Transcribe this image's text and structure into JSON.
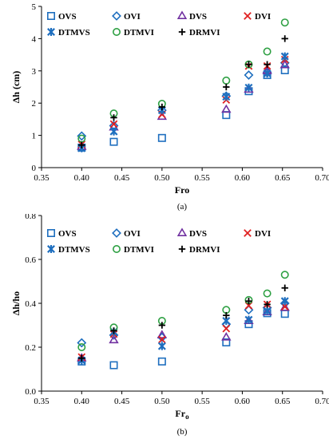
{
  "colors": {
    "OVS": "#1f6fbf",
    "OVI": "#1f6fbf",
    "DVS": "#7030a0",
    "DVI": "#e02020",
    "DTMVS": "#1f6fbf",
    "DTMVI": "#2ea043",
    "DRMVI": "#000000"
  },
  "chart_data": [
    {
      "type": "scatter",
      "caption": "(a)",
      "xlabel": "Fro",
      "ylabel": "Δh (cm)",
      "xlim": [
        0.35,
        0.7
      ],
      "ylim": [
        0,
        5
      ],
      "xticks": [
        "0.35",
        "0.40",
        "0.45",
        "0.50",
        "0.55",
        "0.60",
        "0.65",
        "0.70"
      ],
      "yticks": [
        "0",
        "1",
        "2",
        "3",
        "4",
        "5"
      ],
      "grid": false,
      "legend_position": "top",
      "series": [
        {
          "name": "OVS",
          "marker": "square",
          "x": [
            0.4,
            0.44,
            0.5,
            0.58,
            0.608,
            0.631,
            0.653
          ],
          "y": [
            0.62,
            0.8,
            0.92,
            1.63,
            2.37,
            2.87,
            3.02
          ]
        },
        {
          "name": "OVI",
          "marker": "diamond",
          "x": [
            0.4,
            0.44,
            0.5,
            0.58,
            0.608,
            0.631,
            0.653
          ],
          "y": [
            0.98,
            1.3,
            1.78,
            2.22,
            2.87,
            2.95,
            3.25
          ]
        },
        {
          "name": "DVS",
          "marker": "triangle",
          "x": [
            0.4,
            0.44,
            0.5,
            0.58,
            0.608,
            0.631,
            0.653
          ],
          "y": [
            0.65,
            1.25,
            1.58,
            1.8,
            2.42,
            3.0,
            3.18
          ]
        },
        {
          "name": "DVI",
          "marker": "x",
          "x": [
            0.4,
            0.44,
            0.5,
            0.58,
            0.608,
            0.631,
            0.653
          ],
          "y": [
            0.72,
            1.35,
            1.65,
            2.1,
            3.15,
            3.15,
            3.35
          ]
        },
        {
          "name": "DTMVS",
          "marker": "star",
          "x": [
            0.4,
            0.44,
            0.5,
            0.58,
            0.608,
            0.631,
            0.653
          ],
          "y": [
            0.6,
            1.12,
            1.78,
            2.2,
            2.48,
            2.92,
            3.45
          ]
        },
        {
          "name": "DTMVI",
          "marker": "circle",
          "x": [
            0.4,
            0.44,
            0.5,
            0.58,
            0.608,
            0.631,
            0.653
          ],
          "y": [
            0.9,
            1.68,
            1.98,
            2.7,
            3.2,
            3.6,
            4.5
          ]
        },
        {
          "name": "DRMVI",
          "marker": "plus",
          "x": [
            0.4,
            0.44,
            0.5,
            0.58,
            0.608,
            0.631,
            0.653
          ],
          "y": [
            0.7,
            1.55,
            1.88,
            2.5,
            3.2,
            3.2,
            4.0
          ]
        }
      ]
    },
    {
      "type": "scatter",
      "caption": "(b)",
      "xlabel": "Fr",
      "xlabel_sub": "o",
      "ylabel": "Δh/ho",
      "xlim": [
        0.35,
        0.7
      ],
      "ylim": [
        0,
        0.8
      ],
      "xticks": [
        "0.35",
        "0.40",
        "0.45",
        "0.50",
        "0.55",
        "0.60",
        "0.65",
        "0.70"
      ],
      "yticks": [
        "0.0",
        "0.2",
        "0.4",
        "0.6",
        "0.8"
      ],
      "grid": false,
      "legend_position": "top",
      "series": [
        {
          "name": "OVS",
          "marker": "square",
          "x": [
            0.4,
            0.44,
            0.5,
            0.58,
            0.608,
            0.631,
            0.653
          ],
          "y": [
            0.135,
            0.118,
            0.135,
            0.222,
            0.305,
            0.355,
            0.352
          ]
        },
        {
          "name": "OVI",
          "marker": "diamond",
          "x": [
            0.4,
            0.44,
            0.5,
            0.58,
            0.608,
            0.631,
            0.653
          ],
          "y": [
            0.22,
            0.255,
            0.245,
            0.305,
            0.37,
            0.38,
            0.4
          ]
        },
        {
          "name": "DVS",
          "marker": "triangle",
          "x": [
            0.4,
            0.44,
            0.5,
            0.58,
            0.608,
            0.631,
            0.653
          ],
          "y": [
            0.15,
            0.232,
            0.255,
            0.245,
            0.32,
            0.36,
            0.38
          ]
        },
        {
          "name": "DVI",
          "marker": "x",
          "x": [
            0.4,
            0.44,
            0.5,
            0.58,
            0.608,
            0.631,
            0.653
          ],
          "y": [
            0.155,
            0.26,
            0.235,
            0.285,
            0.39,
            0.395,
            0.385
          ]
        },
        {
          "name": "DTMVS",
          "marker": "star",
          "x": [
            0.4,
            0.44,
            0.5,
            0.58,
            0.608,
            0.631,
            0.653
          ],
          "y": [
            0.14,
            0.27,
            0.205,
            0.32,
            0.325,
            0.365,
            0.41
          ]
        },
        {
          "name": "DTMVI",
          "marker": "circle",
          "x": [
            0.4,
            0.44,
            0.5,
            0.58,
            0.608,
            0.631,
            0.653
          ],
          "y": [
            0.2,
            0.29,
            0.32,
            0.37,
            0.415,
            0.445,
            0.53
          ]
        },
        {
          "name": "DRMVI",
          "marker": "plus",
          "x": [
            0.4,
            0.44,
            0.5,
            0.58,
            0.608,
            0.631,
            0.653
          ],
          "y": [
            0.15,
            0.275,
            0.3,
            0.345,
            0.41,
            0.395,
            0.47
          ]
        }
      ]
    }
  ]
}
